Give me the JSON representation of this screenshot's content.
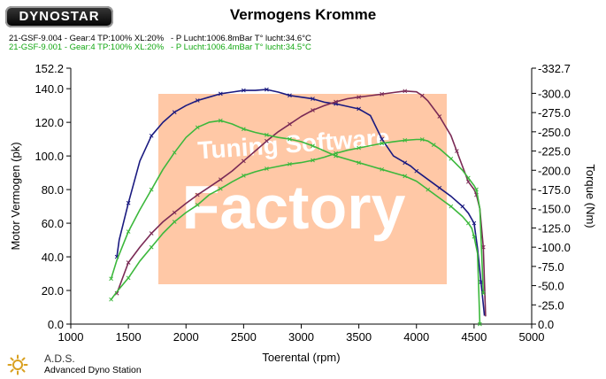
{
  "header": {
    "logo_text": "DYNOSTAR",
    "title": "Vermogens Kromme",
    "runs": [
      {
        "label": "21-GSF-9.004 - Gear:4 TP:100% XL:20%   - P Lucht:1006.8mBar T° lucht:34.6°C",
        "color": "#000000"
      },
      {
        "label": "21-GSF-9.001 - Gear:4 TP:100% XL:20%   - P Lucht:1006.4mBar T° lucht:34.5°C",
        "color": "#13a813"
      }
    ]
  },
  "watermark": {
    "line1": "Tuning Software",
    "line2": "Factory",
    "color": "#ffc8a6"
  },
  "footer": {
    "name": "A.D.S.",
    "subtitle": "Advanced Dyno Station",
    "icon": "sun-gear-icon"
  },
  "chart_data": {
    "type": "line",
    "title": "Vermogens Kromme",
    "xlabel": "Toerental (rpm)",
    "ylabel": "Motor Vermogen (pk)",
    "y2label": "Torque (Nm)",
    "xlim": [
      1000,
      5000
    ],
    "ylim": [
      0,
      152.2
    ],
    "y2lim": [
      0,
      -332.7
    ],
    "x_ticks": [
      1000,
      1500,
      2000,
      2500,
      3000,
      3500,
      4000,
      4500,
      5000
    ],
    "y_ticks": [
      152.2,
      140.0,
      120.0,
      100.0,
      80.0,
      60.0,
      40.0,
      20.0,
      0.0
    ],
    "y2_ticks": [
      -332.7,
      -300.0,
      -275.0,
      -250.0,
      -225.0,
      -200.0,
      -175.0,
      -150.0,
      -125.0,
      -100.0,
      -75.0,
      -50.0,
      -25.0,
      -0.0
    ],
    "grid": false,
    "series": [
      {
        "color": "#1a1a80",
        "axis": "left",
        "x": [
          1400,
          1420,
          1500,
          1600,
          1700,
          1800,
          1900,
          2000,
          2100,
          2200,
          2300,
          2400,
          2500,
          2600,
          2700,
          2800,
          2900,
          3000,
          3100,
          3200,
          3300,
          3400,
          3500,
          3600,
          3700,
          3800,
          3900,
          3950,
          4000,
          4100,
          4200,
          4300,
          4400,
          4450,
          4500,
          4530,
          4560,
          4590
        ],
        "y": [
          40,
          50,
          72,
          97,
          112,
          120,
          126,
          130,
          133,
          135,
          137,
          138,
          139,
          139,
          139.5,
          138,
          136,
          135,
          134,
          132,
          131,
          129.5,
          128,
          124,
          110,
          100,
          96,
          94,
          91,
          86,
          81,
          76,
          70,
          66,
          60,
          45,
          25,
          5
        ]
      },
      {
        "color": "#7a2a55",
        "axis": "right",
        "x": [
          1400,
          1450,
          1500,
          1600,
          1700,
          1800,
          1900,
          2000,
          2100,
          2200,
          2300,
          2400,
          2500,
          2600,
          2700,
          2800,
          2900,
          3000,
          3100,
          3200,
          3300,
          3400,
          3500,
          3600,
          3700,
          3800,
          3900,
          4000,
          4050,
          4100,
          4200,
          4300,
          4350,
          4400,
          4450,
          4500,
          4520,
          4550,
          4580,
          4600
        ],
        "y": [
          -40,
          -60,
          -80,
          -100,
          -118,
          -133,
          -145,
          -157,
          -168,
          -178,
          -188,
          -199,
          -212,
          -225,
          -238,
          -250,
          -260,
          -270,
          -278,
          -284,
          -289,
          -293,
          -295,
          -297,
          -299,
          -301,
          -303,
          -302,
          -297,
          -290,
          -270,
          -245,
          -225,
          -205,
          -185,
          -175,
          -168,
          -150,
          -100,
          -10
        ]
      },
      {
        "color": "#3cb83c",
        "axis": "left",
        "x": [
          1350,
          1400,
          1500,
          1600,
          1700,
          1800,
          1900,
          2000,
          2100,
          2200,
          2300,
          2400,
          2500,
          2600,
          2700,
          2800,
          2900,
          3000,
          3100,
          3200,
          3300,
          3400,
          3500,
          3600,
          3700,
          3800,
          3900,
          4000,
          4100,
          4200,
          4300,
          4400,
          4450,
          4480,
          4500,
          4530,
          4550
        ],
        "y": [
          27,
          38,
          55,
          68,
          80,
          92,
          102,
          111,
          117,
          120,
          121,
          119,
          116,
          114,
          112.5,
          111,
          110,
          108.5,
          106,
          103,
          100,
          98,
          96,
          94,
          92,
          90,
          88,
          85,
          80,
          75,
          70,
          64,
          60,
          57,
          52,
          42,
          0
        ]
      },
      {
        "color": "#3cb83c",
        "axis": "right",
        "x": [
          1350,
          1400,
          1500,
          1600,
          1700,
          1800,
          1900,
          2000,
          2100,
          2200,
          2300,
          2400,
          2500,
          2600,
          2700,
          2800,
          2900,
          3000,
          3100,
          3200,
          3300,
          3400,
          3500,
          3600,
          3700,
          3800,
          3900,
          4000,
          4050,
          4100,
          4150,
          4200,
          4300,
          4400,
          4450,
          4500,
          4520,
          4550,
          4580
        ],
        "y": [
          -32,
          -42,
          -60,
          -82,
          -100,
          -118,
          -133,
          -145,
          -155,
          -168,
          -176,
          -185,
          -193,
          -198,
          -202,
          -205,
          -208,
          -210,
          -213,
          -217,
          -222,
          -226,
          -229,
          -232,
          -235,
          -237,
          -239,
          -240,
          -240,
          -238,
          -233,
          -228,
          -215,
          -200,
          -190,
          -180,
          -175,
          -150,
          -40
        ]
      }
    ]
  }
}
